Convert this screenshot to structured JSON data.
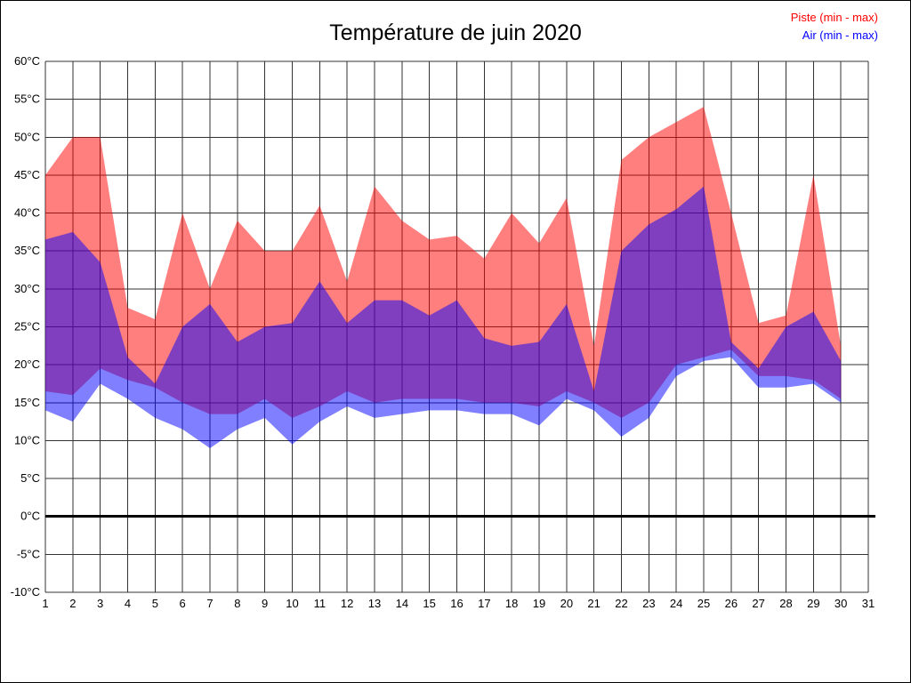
{
  "title": "Température de juin 2020",
  "legend": {
    "piste": "Piste (min - max)",
    "air": "Air (min - max)"
  },
  "chart_data": {
    "type": "area",
    "title": "Température de juin 2020",
    "xlabel": "",
    "ylabel": "",
    "grid": true,
    "grid_color": "#333333",
    "legend_position": "top-right",
    "x_axis": {
      "min": 1,
      "max": 31,
      "tick_labels": [
        "1",
        "2",
        "3",
        "4",
        "5",
        "6",
        "7",
        "8",
        "9",
        "10",
        "11",
        "12",
        "13",
        "14",
        "15",
        "16",
        "17",
        "18",
        "19",
        "20",
        "21",
        "22",
        "23",
        "24",
        "25",
        "26",
        "27",
        "28",
        "29",
        "30",
        "31"
      ]
    },
    "y_axis": {
      "min": -10,
      "max": 60,
      "step": 5,
      "unit": "°C",
      "zero_line_bold": true,
      "tick_labels": [
        "60°C",
        "55°C",
        "50°C",
        "45°C",
        "40°C",
        "35°C",
        "30°C",
        "25°C",
        "20°C",
        "15°C",
        "10°C",
        "5°C",
        "0°C",
        "-5°C",
        "-10°C"
      ]
    },
    "days": [
      1,
      2,
      3,
      4,
      5,
      6,
      7,
      8,
      9,
      10,
      11,
      12,
      13,
      14,
      15,
      16,
      17,
      18,
      19,
      20,
      21,
      22,
      23,
      24,
      25,
      26,
      27,
      28,
      29,
      30
    ],
    "series": [
      {
        "id": "piste",
        "name": "Piste (min - max)",
        "color": "#ff0000",
        "fill_opacity": 0.5,
        "max": [
          45,
          50,
          50,
          27.5,
          26,
          40,
          30,
          39,
          35,
          35,
          41,
          31,
          43.5,
          39,
          36.5,
          37,
          34,
          40,
          36,
          42,
          22.5,
          47,
          50,
          52,
          54,
          40,
          25.5,
          26.5,
          45,
          22.5
        ],
        "min": [
          16.5,
          16,
          19.5,
          18,
          17,
          15,
          13.5,
          13.5,
          15.5,
          13,
          14.5,
          16.5,
          15,
          15.5,
          15.5,
          15.5,
          15,
          15,
          14.5,
          16.5,
          15,
          13,
          15,
          20,
          21,
          22,
          18.5,
          18.5,
          18,
          15.5
        ]
      },
      {
        "id": "air",
        "name": "Air (min - max)",
        "color": "#0000ff",
        "fill_opacity": 0.5,
        "max": [
          36.5,
          37.5,
          33.5,
          21,
          17.5,
          25,
          28,
          23,
          25,
          25.5,
          31,
          25.5,
          28.5,
          28.5,
          26.5,
          28.5,
          23.5,
          22.5,
          23,
          28,
          16.5,
          35,
          38.5,
          40.5,
          43.5,
          23,
          19.5,
          25,
          27,
          20.5
        ],
        "min": [
          14,
          12.5,
          17.5,
          15.5,
          13,
          11.5,
          9,
          11.5,
          13,
          9.5,
          12.5,
          14.5,
          13,
          13.5,
          14,
          14,
          13.5,
          13.5,
          12,
          15.5,
          14,
          10.5,
          13,
          18.5,
          20.5,
          21,
          17,
          17,
          17.5,
          15
        ]
      }
    ]
  }
}
